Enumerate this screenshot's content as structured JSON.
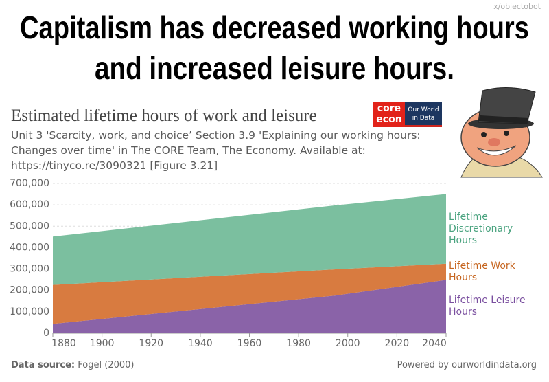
{
  "watermark": "x/objectobot",
  "headline": [
    "Capitalism has decreased working hours",
    "and increased leisure hours."
  ],
  "logos": {
    "core": [
      "core",
      "econ"
    ],
    "owid": [
      "Our World",
      "in Data"
    ]
  },
  "footer": {
    "source_label": "Data source:",
    "source": "Fogel (2000)",
    "powered": "Powered by ourworldindata.org"
  },
  "chart_data": {
    "type": "stacked_area",
    "title": "Estimated lifetime hours of work and leisure",
    "subtitle": "Unit 3 'Scarcity, work, and choice’ Section 3.9 'Explaining our working hours: Changes over time' in The CORE Team, The Economy. Available at:",
    "subtitle_link": "https://tinyco.re/3090321",
    "subtitle_end": "[Figure 3.21]",
    "x": [
      1880,
      1995,
      2040
    ],
    "series": [
      {
        "name": "Lifetime Leisure Hours",
        "color": "#8a63a8",
        "label_color": "#7a4f9f",
        "values": [
          43800,
          176400,
          249200
        ]
      },
      {
        "name": "Lifetime Work Hours",
        "color": "#d87b40",
        "label_color": "#c6651f",
        "values": [
          182100,
          122400,
          75900
        ]
      },
      {
        "name": "Lifetime Discretionary Hours",
        "color": "#7bbf9f",
        "label_color": "#4aa37f",
        "values": [
          225900,
          298800,
          325100
        ]
      }
    ],
    "xlim": [
      1880,
      2040
    ],
    "xticks": [
      1880,
      1900,
      1920,
      1940,
      1960,
      1980,
      2000,
      2020,
      2040
    ],
    "ylim": [
      0,
      700000
    ],
    "yticks": [
      0,
      {
        "value": 100000,
        "label": "100,000"
      },
      {
        "value": 200000,
        "label": "200,000"
      },
      {
        "value": 300000,
        "label": "300,000"
      },
      {
        "value": 400000,
        "label": "400,000"
      },
      {
        "value": 500000,
        "label": "500,000"
      },
      {
        "value": 600000,
        "label": "600,000"
      },
      {
        "value": 700000,
        "label": "700,000"
      }
    ],
    "grid": true
  }
}
